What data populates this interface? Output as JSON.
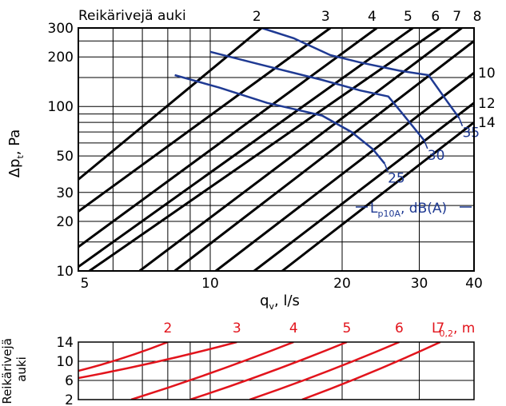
{
  "chart_data": [
    {
      "type": "line",
      "x_scale": "log",
      "y_scale": "log",
      "xlim": [
        5,
        40
      ],
      "ylim": [
        10,
        300
      ],
      "x_tick_labels": [
        "5",
        "10",
        "20",
        "30",
        "40"
      ],
      "y_tick_labels": [
        "10",
        "20",
        "30",
        "50",
        "100",
        "200",
        "300"
      ],
      "xlabel": "qv, l/s",
      "xlabel_main": "q",
      "xlabel_sub": "v",
      "xlabel_tail": ", l/s",
      "ylabel": "Δpt, Pa",
      "ylabel_main": "Δp",
      "ylabel_sub": "t",
      "ylabel_tail": ", Pa",
      "grid": true,
      "top_label": "Reikärivejä auki",
      "opening_lines": [
        {
          "label": "2",
          "points": [
            [
              5,
              36
            ],
            [
              13.1,
              300
            ]
          ]
        },
        {
          "label": "3",
          "points": [
            [
              5,
              23
            ],
            [
              18.8,
              300
            ]
          ]
        },
        {
          "label": "4",
          "points": [
            [
              5,
              14
            ],
            [
              24.0,
              300
            ]
          ]
        },
        {
          "label": "5",
          "points": [
            [
              5,
              10.6
            ],
            [
              29.0,
              300
            ]
          ]
        },
        {
          "label": "6",
          "points": [
            [
              5.3,
              10
            ],
            [
              33.5,
              300
            ]
          ]
        },
        {
          "label": "7",
          "points": [
            [
              6.9,
              10
            ],
            [
              37.5,
              300
            ]
          ]
        },
        {
          "label": "8",
          "points": [
            [
              8.3,
              10
            ],
            [
              40,
              250
            ]
          ]
        },
        {
          "label": "10",
          "points": [
            [
              10.3,
              10
            ],
            [
              40,
              160
            ]
          ]
        },
        {
          "label": "12",
          "points": [
            [
              12.6,
              10
            ],
            [
              40,
              105
            ]
          ]
        },
        {
          "label": "14",
          "points": [
            [
              14.6,
              10
            ],
            [
              40,
              80
            ]
          ]
        }
      ],
      "sound_series_title_main": "L",
      "sound_series_title_sub": "p10A",
      "sound_series_title_tail": ", dB(A)",
      "sound_series_color": "#1f3a93",
      "series": [
        {
          "name": "35",
          "x": [
            13.1,
            15.5,
            18.8,
            22,
            27,
            31.5,
            34.5,
            37
          ],
          "y": [
            300,
            260,
            205,
            185,
            165,
            155,
            110,
            85
          ]
        },
        {
          "name": "30",
          "x": [
            10,
            13,
            18,
            22,
            25.5,
            27.5,
            30.8
          ],
          "y": [
            215,
            180,
            145,
            125,
            115,
            90,
            62
          ]
        },
        {
          "name": "25",
          "x": [
            8.3,
            10.5,
            13.5,
            18,
            21,
            23.5,
            25
          ],
          "y": [
            155,
            130,
            105,
            88,
            70,
            55,
            45
          ]
        }
      ]
    },
    {
      "type": "line",
      "ylabel": "Reikärivejä auki",
      "ylabel_line1": "Reikärivejä",
      "ylabel_line2": "auki",
      "y_ticks": [
        2,
        6,
        10,
        14
      ],
      "y_tick_labels": [
        "14",
        "10",
        "6",
        "2"
      ],
      "ylim": [
        2,
        14
      ],
      "xlim": [
        5,
        40
      ],
      "x_scale": "log",
      "throw_title_main": "L",
      "throw_title_sub": "0,2",
      "throw_title_tail": ", m",
      "throw_color": "#e2141c",
      "series": [
        {
          "name": "2",
          "x": [
            5,
            8.0
          ],
          "y": [
            8,
            14
          ]
        },
        {
          "name": "3",
          "x": [
            5,
            11.5
          ],
          "y": [
            6.5,
            14
          ]
        },
        {
          "name": "4",
          "x": [
            6.6,
            15.5
          ],
          "y": [
            2,
            14
          ]
        },
        {
          "name": "5",
          "x": [
            9.0,
            20.5
          ],
          "y": [
            2,
            14
          ]
        },
        {
          "name": "6",
          "x": [
            12.3,
            27.0
          ],
          "y": [
            2,
            14
          ]
        },
        {
          "name": "7",
          "x": [
            16.2,
            33.5
          ],
          "y": [
            2,
            14
          ]
        }
      ]
    }
  ]
}
